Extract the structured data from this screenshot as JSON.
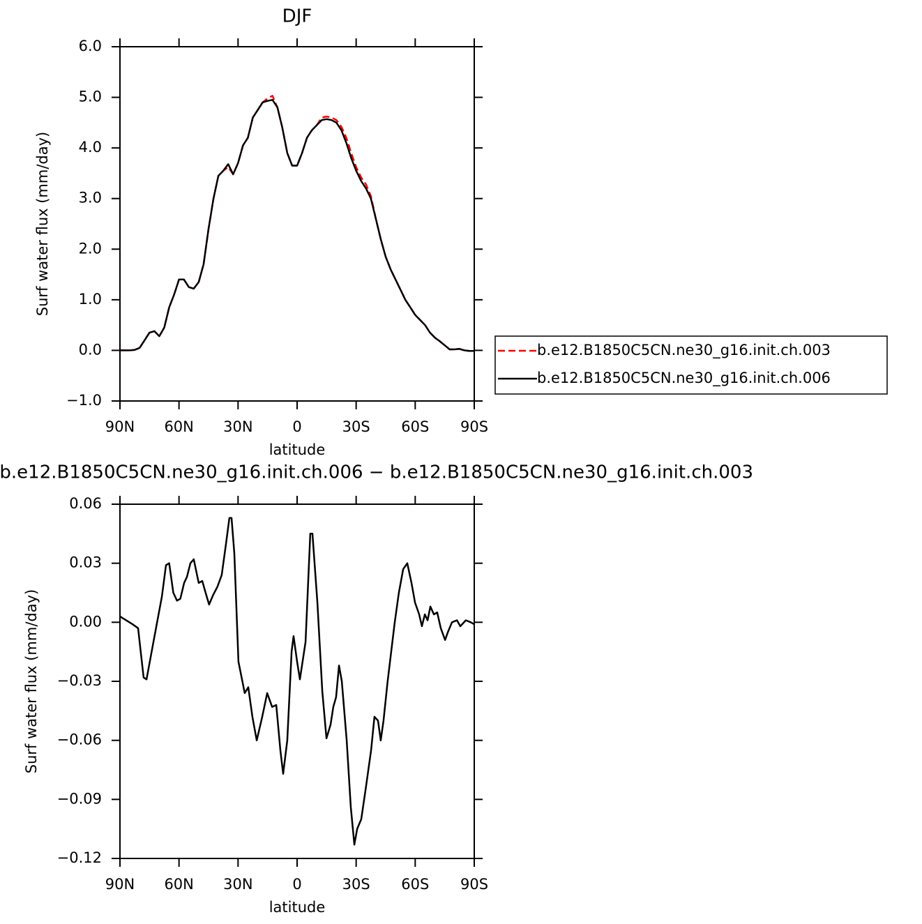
{
  "chart_data": [
    {
      "type": "line",
      "title": "DJF",
      "xlabel": "latitude",
      "ylabel": "Surf water flux (mm/day)",
      "x": [
        90,
        87.5,
        85,
        82.5,
        80,
        77.5,
        75,
        72.5,
        70,
        67.5,
        65,
        62.5,
        60,
        57.5,
        55,
        52.5,
        50,
        47.5,
        45,
        42.5,
        40,
        37.5,
        35,
        32.5,
        30,
        27.5,
        25,
        22.5,
        20,
        17.5,
        15,
        12.5,
        10,
        7.5,
        5,
        2.5,
        0,
        -2.5,
        -5,
        -7.5,
        -10,
        -12.5,
        -15,
        -17.5,
        -20,
        -22.5,
        -25,
        -27.5,
        -30,
        -32.5,
        -35,
        -37.5,
        -40,
        -42.5,
        -45,
        -47.5,
        -50,
        -52.5,
        -55,
        -57.5,
        -60,
        -62.5,
        -65,
        -67.5,
        -70,
        -72.5,
        -75,
        -77.5,
        -80,
        -82.5,
        -85,
        -87.5,
        -90
      ],
      "series": [
        {
          "name": "b.e12.B1850C5CN.ne30_g16.init.ch.003",
          "color": "#ff0000",
          "dash": "dashed",
          "values": [
            0,
            0,
            0,
            0.01,
            0.05,
            0.2,
            0.35,
            0.38,
            0.28,
            0.45,
            0.85,
            1.1,
            1.4,
            1.4,
            1.25,
            1.22,
            1.35,
            1.7,
            2.4,
            3.0,
            3.45,
            3.55,
            3.62,
            3.48,
            3.7,
            4.05,
            4.2,
            4.6,
            4.75,
            4.9,
            4.98,
            5.03,
            4.8,
            4.4,
            3.9,
            3.65,
            3.65,
            3.9,
            4.2,
            4.35,
            4.45,
            4.6,
            4.62,
            4.6,
            4.55,
            4.42,
            4.2,
            3.9,
            3.62,
            3.42,
            3.28,
            3.05,
            2.6,
            2.2,
            1.85,
            1.6,
            1.4,
            1.2,
            1.0,
            0.85,
            0.7,
            0.6,
            0.5,
            0.35,
            0.25,
            0.18,
            0.1,
            0.02,
            0.02,
            0.03,
            0,
            -0.01,
            -0.01
          ]
        },
        {
          "name": "b.e12.B1850C5CN.ne30_g16.init.ch.006",
          "color": "#000000",
          "dash": "solid",
          "values": [
            0,
            0,
            0,
            0.01,
            0.05,
            0.2,
            0.35,
            0.38,
            0.28,
            0.45,
            0.85,
            1.1,
            1.4,
            1.4,
            1.25,
            1.22,
            1.35,
            1.7,
            2.4,
            3.0,
            3.45,
            3.55,
            3.68,
            3.48,
            3.7,
            4.05,
            4.2,
            4.6,
            4.75,
            4.9,
            4.93,
            4.95,
            4.8,
            4.4,
            3.9,
            3.65,
            3.65,
            3.9,
            4.2,
            4.35,
            4.45,
            4.55,
            4.57,
            4.55,
            4.5,
            4.35,
            4.1,
            3.8,
            3.55,
            3.35,
            3.2,
            3.0,
            2.6,
            2.2,
            1.85,
            1.6,
            1.4,
            1.2,
            1.0,
            0.85,
            0.7,
            0.6,
            0.5,
            0.35,
            0.25,
            0.18,
            0.1,
            0.02,
            0.02,
            0.03,
            0,
            -0.01,
            -0.01
          ]
        }
      ],
      "xlim": [
        90,
        -90
      ],
      "xticks": [
        {
          "value": 90,
          "label": "90N"
        },
        {
          "value": 60,
          "label": "60N"
        },
        {
          "value": 30,
          "label": "30N"
        },
        0,
        {
          "value": -30,
          "label": "30S"
        },
        {
          "value": -60,
          "label": "60S"
        },
        {
          "value": -90,
          "label": "90S"
        }
      ],
      "ylim": [
        -1,
        6
      ],
      "yticks": [
        {
          "value": -1,
          "label": "−1.0"
        },
        {
          "value": 0,
          "label": "0.0"
        },
        {
          "value": 1,
          "label": "1.0"
        },
        {
          "value": 2,
          "label": "2.0"
        },
        {
          "value": 3,
          "label": "3.0"
        },
        {
          "value": 4,
          "label": "4.0"
        },
        {
          "value": 5,
          "label": "5.0"
        },
        {
          "value": 6,
          "label": "6.0"
        }
      ],
      "legend": "outside-right"
    },
    {
      "type": "line",
      "title": "b.e12.B1850C5CN.ne30_g16.init.ch.006 − b.e12.B1850C5CN.ne30_g16.init.ch.003",
      "xlabel": "latitude",
      "ylabel": "Surf water flux (mm/day)",
      "x": [
        90,
        83.6,
        80.8,
        78,
        76.5,
        73,
        68.7,
        66.6,
        65,
        62.9,
        61,
        59.3,
        57.4,
        56,
        54.2,
        52.5,
        50,
        48.2,
        46.5,
        44.7,
        42.6,
        40.5,
        38.3,
        36.1,
        34.4,
        33.3,
        31.9,
        29.8,
        26.6,
        24.8,
        22.7,
        20.5,
        17.7,
        15.2,
        12.7,
        10.6,
        8.5,
        7.1,
        5,
        2.8,
        1.8,
        0,
        -1.4,
        -4.3,
        -6.7,
        -7.8,
        -10.3,
        -12.8,
        -14.9,
        -17,
        -18.4,
        -19.8,
        -21.3,
        -22.7,
        -25.2,
        -27.3,
        -29.1,
        -30.5,
        -32.6,
        -34.8,
        -37.6,
        -39.3,
        -41.1,
        -42.5,
        -43.9,
        -46,
        -49.6,
        -51.7,
        -53.9,
        -56,
        -58.1,
        -59.9,
        -62,
        -63.4,
        -64.9,
        -66.3,
        -67.7,
        -69.5,
        -71.2,
        -73,
        -75.2,
        -76.6,
        -78.7,
        -81.2,
        -82.9,
        -85.7,
        -88.2,
        -90
      ],
      "series": [
        {
          "color": "#000000",
          "dash": "solid",
          "values": [
            0.003,
            -0.001,
            -0.003,
            -0.028,
            -0.029,
            -0.01,
            0.013,
            0.029,
            0.03,
            0.015,
            0.011,
            0.012,
            0.02,
            0.023,
            0.03,
            0.032,
            0.02,
            0.021,
            0.015,
            0.009,
            0.014,
            0.018,
            0.024,
            0.04,
            0.053,
            0.053,
            0.035,
            -0.02,
            -0.036,
            -0.033,
            -0.048,
            -0.06,
            -0.048,
            -0.036,
            -0.043,
            -0.042,
            -0.065,
            -0.077,
            -0.06,
            -0.015,
            -0.007,
            -0.02,
            -0.029,
            -0.01,
            0.045,
            0.045,
            0.01,
            -0.035,
            -0.059,
            -0.052,
            -0.043,
            -0.038,
            -0.022,
            -0.03,
            -0.06,
            -0.094,
            -0.113,
            -0.105,
            -0.1,
            -0.085,
            -0.065,
            -0.048,
            -0.05,
            -0.06,
            -0.05,
            -0.03,
            0,
            0.015,
            0.027,
            0.03,
            0.02,
            0.01,
            0.004,
            -0.002,
            0.004,
            0.001,
            0.008,
            0.004,
            0.005,
            -0.003,
            -0.009,
            -0.005,
            0,
            0.001,
            -0.002,
            0.001,
            0,
            -0.001
          ]
        }
      ],
      "xlim": [
        90,
        -90
      ],
      "xticks": [
        {
          "value": 90,
          "label": "90N"
        },
        {
          "value": 60,
          "label": "60N"
        },
        {
          "value": 30,
          "label": "30N"
        },
        0,
        {
          "value": -30,
          "label": "30S"
        },
        {
          "value": -60,
          "label": "60S"
        },
        {
          "value": -90,
          "label": "90S"
        }
      ],
      "ylim": [
        -0.12,
        0.06
      ],
      "yticks": [
        {
          "value": -0.12,
          "label": "−0.12"
        },
        {
          "value": -0.09,
          "label": "−0.09"
        },
        {
          "value": -0.06,
          "label": "−0.06"
        },
        {
          "value": -0.03,
          "label": "−0.03"
        },
        {
          "value": 0,
          "label": "0.00"
        },
        {
          "value": 0.03,
          "label": "0.03"
        },
        {
          "value": 0.06,
          "label": "0.06"
        }
      ]
    }
  ]
}
